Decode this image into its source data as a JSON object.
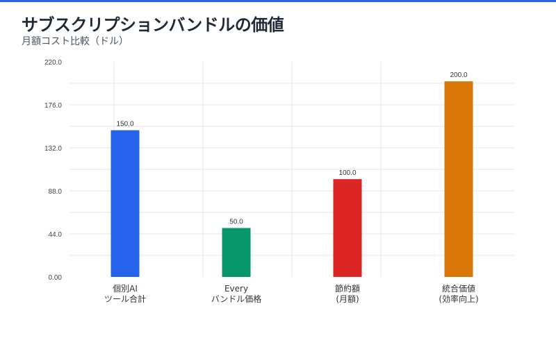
{
  "header": {
    "title": "サブスクリプションバンドルの価値",
    "subtitle": "月額コスト比較（ドル）"
  },
  "chart_data": {
    "type": "bar",
    "title": "サブスクリプションバンドルの価値",
    "subtitle": "月額コスト比較（ドル）",
    "xlabel": "",
    "ylabel": "",
    "ylim": [
      0,
      220
    ],
    "yticks": [
      0,
      44,
      88,
      132,
      176,
      220
    ],
    "ytick_labels": [
      "0.00",
      "44.0",
      "88.0",
      "132.0",
      "176.0",
      "220.0"
    ],
    "grid": true,
    "categories": [
      [
        "個別AI",
        "ツール合計"
      ],
      [
        "Every",
        "バンドル価格"
      ],
      [
        "節約額",
        "(月額)"
      ],
      [
        "統合価値",
        "(効率向上)"
      ]
    ],
    "values": [
      150,
      50,
      100,
      200
    ],
    "data_labels": [
      "150.0",
      "50.0",
      "100.0",
      "200.0"
    ],
    "colors": [
      "#2563eb",
      "#059669",
      "#dc2626",
      "#d97706"
    ]
  }
}
